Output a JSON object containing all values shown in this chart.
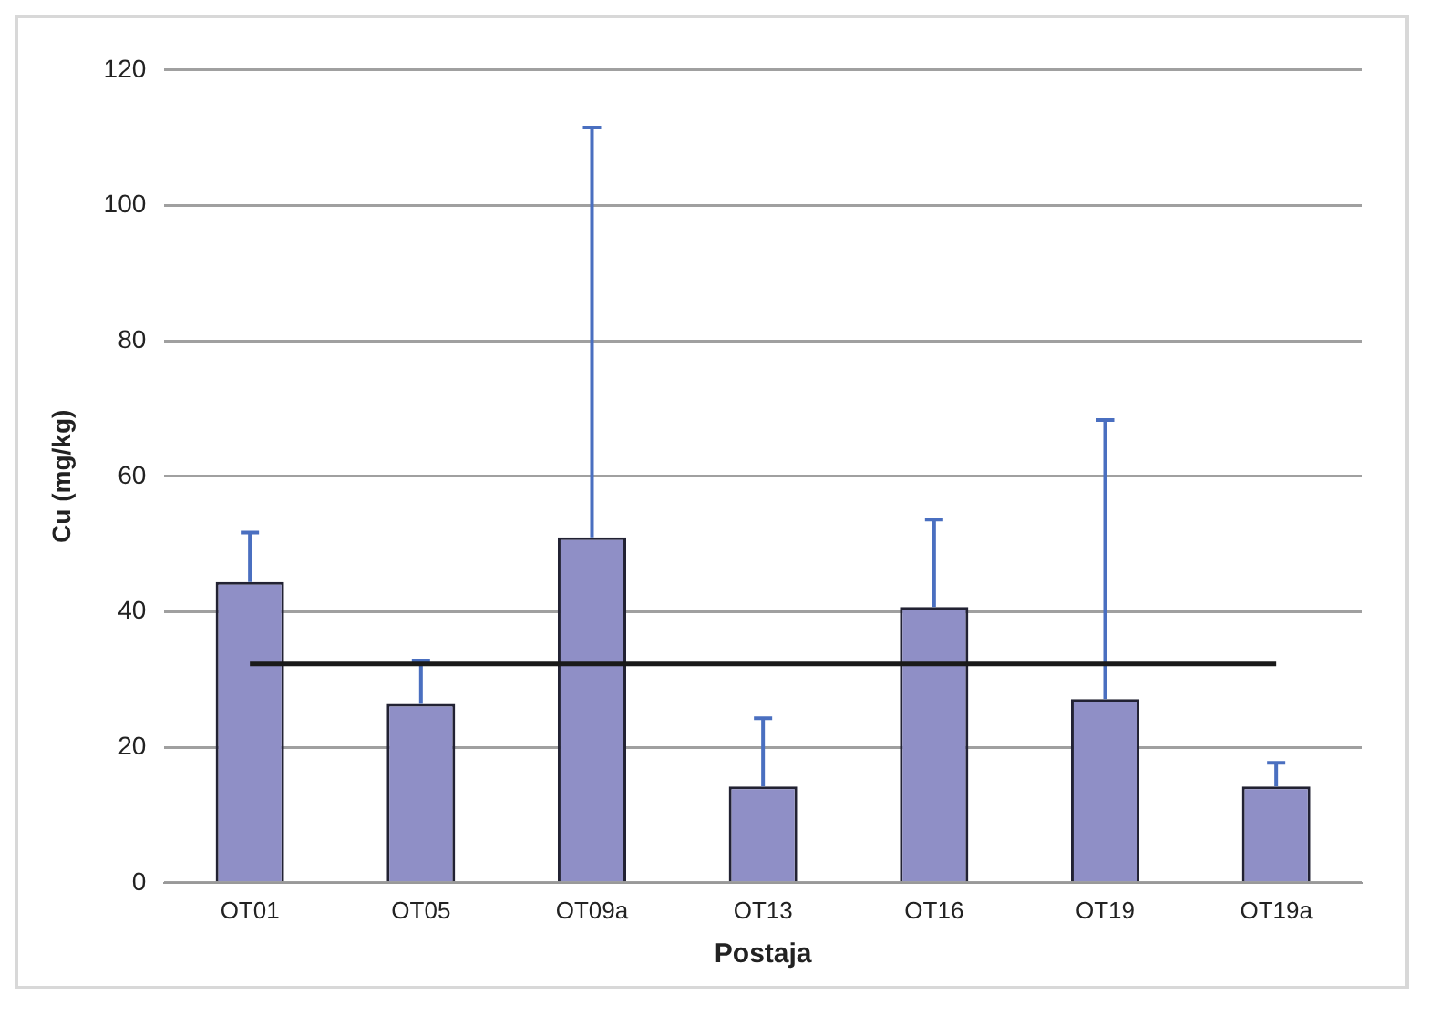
{
  "chart_data": {
    "type": "bar",
    "xlabel": "Postaja",
    "ylabel": "Cu (mg/kg)",
    "categories": [
      "OT01",
      "OT05",
      "OT09a",
      "OT13",
      "OT16",
      "OT19",
      "OT19a"
    ],
    "values": [
      44.4,
      26.4,
      51.0,
      14.2,
      40.7,
      27.1,
      14.2
    ],
    "errors": [
      [
        44.4,
        51.7
      ],
      [
        26.4,
        32.8
      ],
      [
        51.0,
        111.5
      ],
      [
        14.2,
        24.3
      ],
      [
        40.7,
        53.6
      ],
      [
        27.1,
        68.3
      ],
      [
        14.2,
        17.7
      ]
    ],
    "color": "#8f8fc6",
    "ylim": [
      0,
      120
    ],
    "yticks": [
      0,
      20,
      40,
      60,
      80,
      100,
      120
    ],
    "grid": "y",
    "legend": false,
    "ref_lines": [
      {
        "axis": "y",
        "value": 32.3,
        "color": "#1a1a1a"
      }
    ]
  }
}
